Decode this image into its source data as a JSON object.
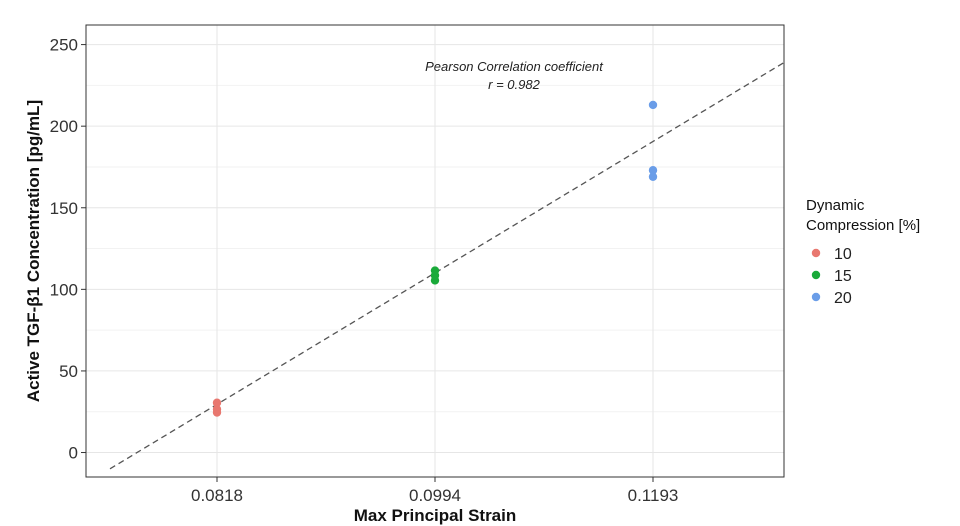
{
  "chart_data": {
    "type": "scatter",
    "xlabel": "Max Principal Strain",
    "ylabel": "Active TGF-β1 Concentration [pg/mL]",
    "x_ticks": [
      "0.0818",
      "0.0994",
      "0.1193"
    ],
    "y_ticks": [
      "0",
      "50",
      "100",
      "150",
      "200",
      "250"
    ],
    "ylim": [
      -15,
      262
    ],
    "grid": true,
    "annotation": {
      "line1": "Pearson Correlation coefficient",
      "line2": "r =  0.982"
    },
    "legend": {
      "position": "right",
      "title_line1": "Dynamic",
      "title_line2": "Compression [%]"
    },
    "series": [
      {
        "name": "10",
        "color": "#e8776f",
        "category": "0.0818",
        "values": [
          30.5,
          26.5,
          24.5
        ]
      },
      {
        "name": "15",
        "color": "#1aaa3a",
        "category": "0.0994",
        "values": [
          111.5,
          108.5,
          105.5
        ]
      },
      {
        "name": "20",
        "color": "#6a9de8",
        "category": "0.1193",
        "values": [
          213,
          173,
          169
        ]
      }
    ],
    "trendline": {
      "style": "dashed",
      "y_at_start": -10,
      "y_at_end": 239
    }
  }
}
